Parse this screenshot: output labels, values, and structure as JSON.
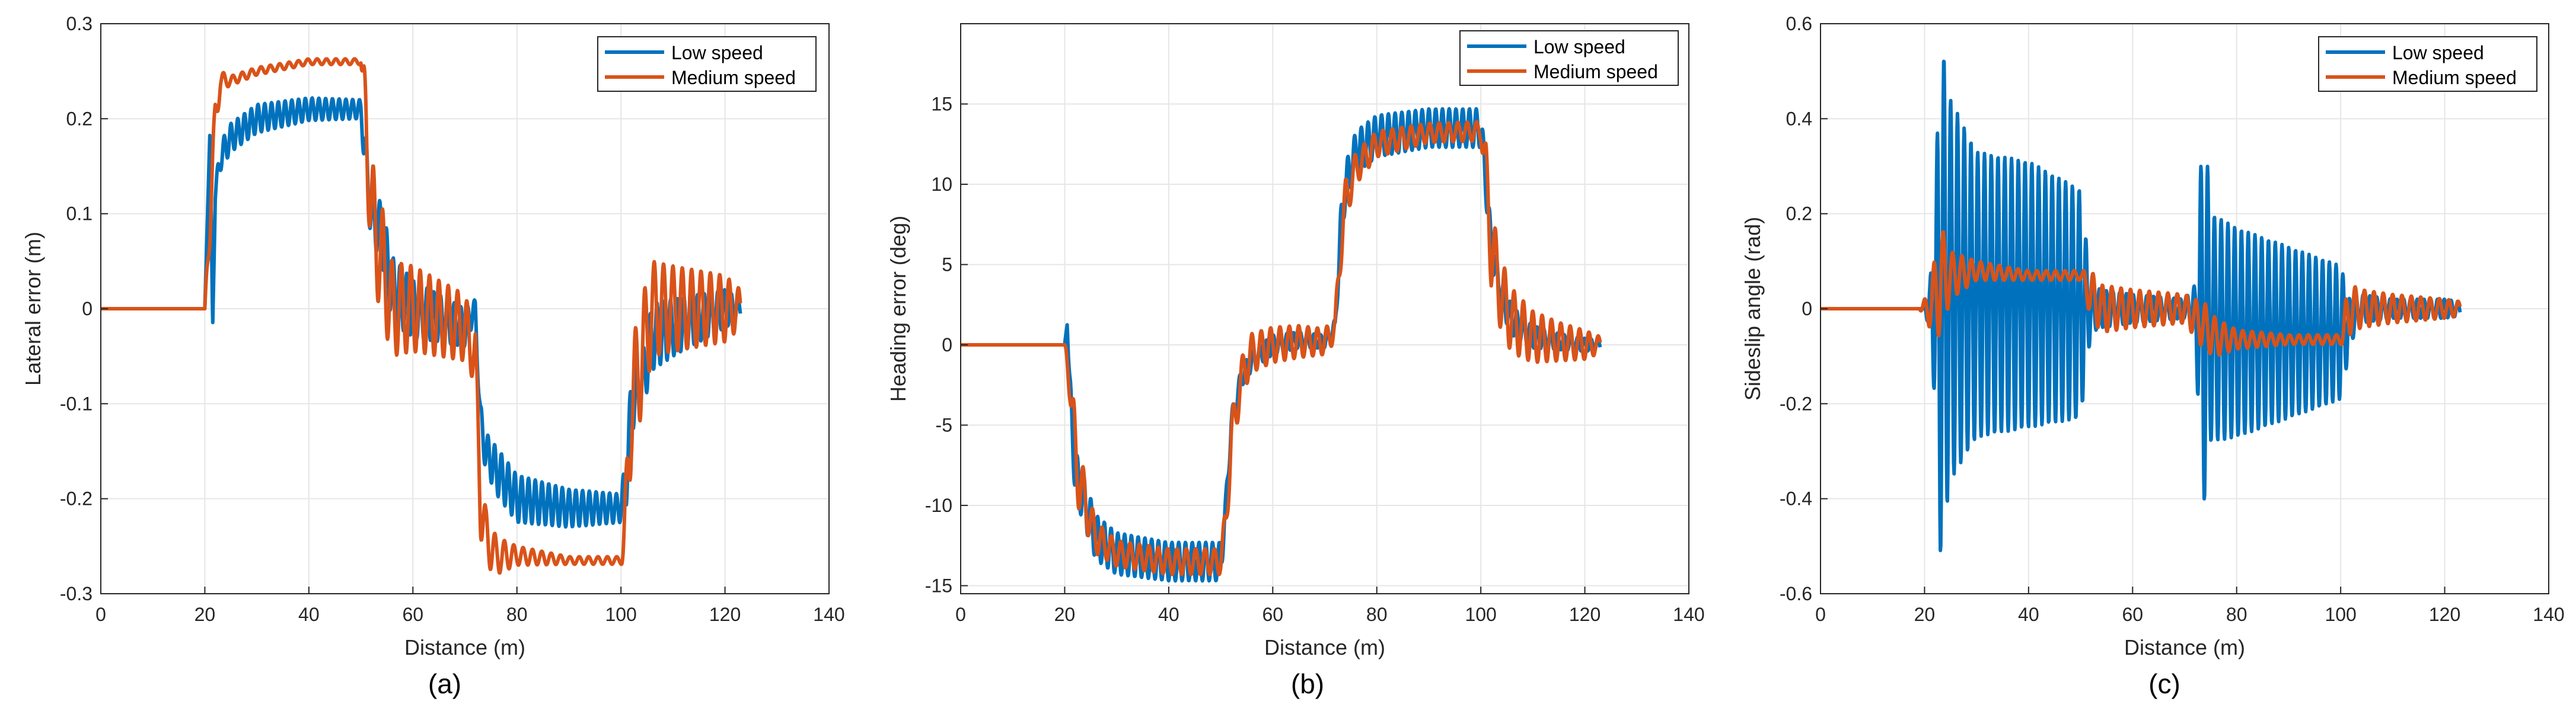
{
  "colors": {
    "low": "#0072BD",
    "medium": "#D95319",
    "grid": "#e6e6e6",
    "axis": "#262626"
  },
  "chart_data": [
    {
      "panel": "a",
      "type": "line",
      "caption": "(a)",
      "xlabel": "Distance (m)",
      "ylabel": "Lateral error (m)",
      "xlim": [
        0,
        140
      ],
      "ylim": [
        -0.3,
        0.3
      ],
      "xticks": [
        0,
        20,
        40,
        60,
        80,
        100,
        120,
        140
      ],
      "yticks": [
        -0.3,
        -0.2,
        -0.1,
        0,
        0.1,
        0.2,
        0.3
      ],
      "xtick_labels": [
        "0",
        "20",
        "40",
        "60",
        "80",
        "100",
        "120",
        "140"
      ],
      "ytick_labels": [
        "-0.3",
        "-0.2",
        "-0.1",
        "0",
        "0.1",
        "0.2",
        "0.3"
      ],
      "grid": true,
      "legend": "top-right",
      "series": [
        {
          "name": "Low speed",
          "color_key": "low",
          "x": [
            0,
            20,
            21,
            21.5,
            22,
            23,
            25,
            30,
            40,
            50,
            51,
            52,
            54,
            56,
            60,
            65,
            70,
            72,
            73,
            74,
            76,
            80,
            90,
            100,
            101,
            102,
            104,
            106,
            110,
            115,
            120,
            123
          ],
          "y": [
            0,
            0,
            0.19,
            -0.02,
            0.12,
            0.16,
            0.18,
            0.2,
            0.21,
            0.21,
            0.15,
            0.1,
            0.08,
            0.02,
            0.0,
            -0.01,
            -0.02,
            0.0,
            -0.12,
            -0.15,
            -0.17,
            -0.2,
            -0.21,
            -0.21,
            -0.18,
            -0.1,
            -0.08,
            -0.03,
            -0.02,
            -0.01,
            0.0,
            0.0
          ],
          "osc": [
            0,
            0,
            0,
            0,
            0.01,
            0.015,
            0.015,
            0.015,
            0.012,
            0.01,
            0.03,
            0.03,
            0.03,
            0.035,
            0.03,
            0.025,
            0.02,
            0.01,
            0.02,
            0.02,
            0.025,
            0.025,
            0.02,
            0.015,
            0.03,
            0.03,
            0.03,
            0.035,
            0.03,
            0.025,
            0.02,
            0.01
          ]
        },
        {
          "name": "Medium speed",
          "color_key": "medium",
          "x": [
            0,
            20,
            21,
            22,
            23,
            25,
            30,
            40,
            50,
            51,
            52,
            54,
            56,
            60,
            65,
            70,
            72,
            73,
            74,
            76,
            80,
            90,
            100,
            101,
            102,
            104,
            106,
            110,
            115,
            120,
            123
          ],
          "y": [
            0,
            0,
            0.1,
            0.2,
            0.24,
            0.24,
            0.25,
            0.26,
            0.26,
            0.2,
            0.1,
            0.05,
            0.0,
            0.0,
            -0.01,
            -0.02,
            -0.05,
            -0.2,
            -0.24,
            -0.26,
            -0.26,
            -0.265,
            -0.265,
            -0.22,
            -0.1,
            -0.05,
            0.0,
            0.0,
            0.0,
            0.0,
            0.0
          ],
          "osc": [
            0,
            0,
            0.03,
            0.02,
            0.01,
            0.005,
            0.004,
            0.003,
            0.003,
            0.05,
            0.06,
            0.06,
            0.05,
            0.045,
            0.04,
            0.035,
            0.03,
            0.04,
            0.03,
            0.02,
            0.01,
            0.004,
            0.004,
            0.05,
            0.06,
            0.06,
            0.05,
            0.045,
            0.04,
            0.035,
            0.02
          ]
        }
      ]
    },
    {
      "panel": "b",
      "type": "line",
      "caption": "(b)",
      "xlabel": "Distance (m)",
      "ylabel": "Heading error (deg)",
      "xlim": [
        0,
        140
      ],
      "ylim": [
        -15.5,
        20
      ],
      "xticks": [
        0,
        20,
        40,
        60,
        80,
        100,
        120,
        140
      ],
      "yticks": [
        -15,
        -10,
        -5,
        0,
        5,
        10,
        15
      ],
      "xtick_labels": [
        "0",
        "20",
        "40",
        "60",
        "80",
        "100",
        "120",
        "140"
      ],
      "ytick_labels": [
        "-15",
        "-10",
        "-5",
        "0",
        "5",
        "10",
        "15"
      ],
      "grid": true,
      "legend": "top-right",
      "series": [
        {
          "name": "Low speed",
          "color_key": "low",
          "x": [
            0,
            20,
            20.5,
            21,
            22,
            24,
            26,
            30,
            40,
            50,
            51,
            52,
            54,
            56,
            60,
            65,
            70,
            72,
            73,
            74,
            76,
            80,
            90,
            100,
            101,
            102,
            104,
            106,
            110,
            115,
            120,
            123
          ],
          "y": [
            0,
            0,
            1.5,
            -3,
            -8,
            -10,
            -12,
            -13,
            -13.5,
            -13.5,
            -10,
            -5,
            -2,
            -1,
            0,
            0.3,
            0.2,
            1,
            7,
            10,
            12,
            13,
            13.5,
            13.5,
            10,
            6,
            3,
            1.5,
            0.5,
            0.2,
            0.0,
            0.0
          ],
          "osc": [
            0,
            0,
            0.2,
            1.2,
            1.5,
            1.5,
            1.4,
            1.3,
            1.2,
            1.2,
            0.8,
            0.8,
            0.6,
            0.6,
            0.6,
            0.5,
            0.4,
            0.6,
            1.2,
            1.3,
            1.3,
            1.3,
            1.2,
            1.2,
            1.2,
            1.1,
            1.0,
            0.9,
            0.7,
            0.5,
            0.4,
            0.3
          ]
        },
        {
          "name": "Medium speed",
          "color_key": "medium",
          "x": [
            0,
            20,
            21,
            22,
            24,
            26,
            30,
            40,
            50,
            51,
            52,
            54,
            56,
            60,
            65,
            70,
            72,
            73,
            74,
            76,
            80,
            90,
            100,
            101,
            102,
            104,
            106,
            110,
            115,
            120,
            123
          ],
          "y": [
            0,
            0,
            -2,
            -7,
            -10,
            -12,
            -13,
            -13.5,
            -13.5,
            -11,
            -6,
            -2,
            -0.5,
            0,
            0.2,
            0.2,
            1,
            6,
            9,
            11,
            12.5,
            13.2,
            13.3,
            11,
            6,
            3,
            1.5,
            0.5,
            0.2,
            0.0,
            0.0
          ],
          "osc": [
            0,
            0,
            1.5,
            2.5,
            1.5,
            1.0,
            0.8,
            0.8,
            0.8,
            1.2,
            1.5,
            1.2,
            1.2,
            1.1,
            1.0,
            0.8,
            0.8,
            1.5,
            1.3,
            1.0,
            0.8,
            0.6,
            0.6,
            1.5,
            2.5,
            2.3,
            2.0,
            1.6,
            1.2,
            0.9,
            0.5
          ]
        }
      ]
    },
    {
      "panel": "c",
      "type": "line",
      "caption": "(c)",
      "xlabel": "Distance (m)",
      "ylabel": "Sideslip angle (rad)",
      "xlim": [
        0,
        140
      ],
      "ylim": [
        -0.6,
        0.6
      ],
      "xticks": [
        0,
        20,
        40,
        60,
        80,
        100,
        120,
        140
      ],
      "yticks": [
        -0.6,
        -0.4,
        -0.2,
        0,
        0.2,
        0.4,
        0.6
      ],
      "xtick_labels": [
        "0",
        "20",
        "40",
        "60",
        "80",
        "100",
        "120",
        "140"
      ],
      "ytick_labels": [
        "-0.6",
        "-0.4",
        "-0.2",
        "0",
        "0.2",
        "0.4",
        "0.6"
      ],
      "grid": true,
      "legend": "top-right",
      "series": [
        {
          "name": "Low speed",
          "color_key": "low",
          "x": [
            0,
            20,
            21,
            22,
            23,
            25,
            30,
            40,
            50,
            52,
            54,
            60,
            70,
            72,
            73,
            74,
            75,
            80,
            90,
            100,
            102,
            104,
            110,
            115,
            120,
            123
          ],
          "y": [
            0,
            0,
            0.0,
            0.0,
            0.03,
            0.04,
            0.03,
            0.03,
            0.01,
            0.0,
            0.0,
            0.0,
            0.0,
            0.0,
            -0.01,
            -0.03,
            -0.04,
            -0.05,
            -0.05,
            -0.05,
            -0.03,
            0.0,
            0.0,
            0.0,
            0.0,
            0.0
          ],
          "osc": [
            0,
            0,
            0.05,
            0.2,
            0.55,
            0.4,
            0.3,
            0.28,
            0.24,
            0.05,
            0.04,
            0.03,
            0.02,
            0.05,
            0.3,
            0.4,
            0.24,
            0.22,
            0.18,
            0.14,
            0.04,
            0.03,
            0.02,
            0.02,
            0.02,
            0.015
          ]
        },
        {
          "name": "Medium speed",
          "color_key": "medium",
          "x": [
            0,
            19,
            20,
            21,
            22,
            23,
            25,
            30,
            40,
            50,
            52,
            54,
            60,
            70,
            72,
            74,
            76,
            80,
            90,
            100,
            101,
            102,
            104,
            110,
            115,
            120,
            123
          ],
          "y": [
            0,
            0,
            0.0,
            0.0,
            0.03,
            0.06,
            0.07,
            0.08,
            0.07,
            0.07,
            0.03,
            0.0,
            0.0,
            0.0,
            -0.02,
            -0.04,
            -0.06,
            -0.065,
            -0.065,
            -0.065,
            -0.03,
            0.0,
            0.0,
            0.0,
            0.0,
            0.0,
            0.0
          ],
          "osc": [
            0,
            0,
            0.02,
            0.04,
            0.08,
            0.12,
            0.05,
            0.02,
            0.01,
            0.01,
            0.05,
            0.05,
            0.04,
            0.03,
            0.04,
            0.05,
            0.04,
            0.02,
            0.01,
            0.01,
            0.05,
            0.05,
            0.04,
            0.03,
            0.025,
            0.02,
            0.015
          ]
        }
      ]
    }
  ]
}
